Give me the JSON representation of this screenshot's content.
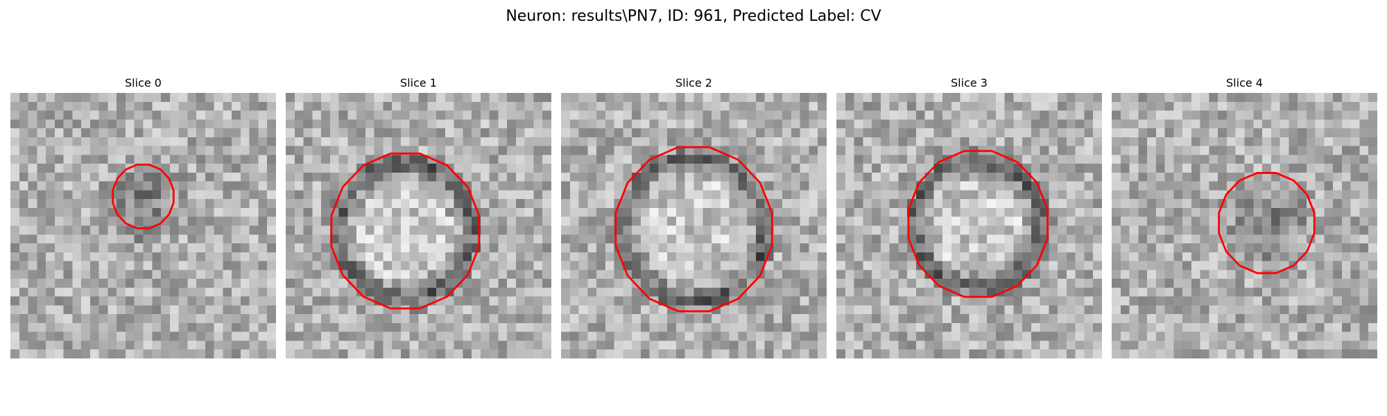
{
  "figure": {
    "suptitle": "Neuron: results\\PN7, ID: 961, Predicted Label: CV",
    "contour_color": "#ff0000",
    "colormap": "gray",
    "grid_size": 30
  },
  "panels": [
    {
      "title": "Slice 0",
      "contour": {
        "cx": 15,
        "cy": 11.7,
        "r": 3.5
      },
      "blob": {
        "cx": 15,
        "cy": 12.5,
        "r": 6,
        "ring": false
      }
    },
    {
      "title": "Slice 1",
      "contour": {
        "cx": 13.5,
        "cy": 15.6,
        "r": 8.5
      },
      "blob": {
        "cx": 13.5,
        "cy": 15.6,
        "r": 9,
        "ring": true
      }
    },
    {
      "title": "Slice 2",
      "contour": {
        "cx": 15,
        "cy": 15.4,
        "r": 9
      },
      "blob": {
        "cx": 15,
        "cy": 15.4,
        "r": 9.5,
        "ring": true
      }
    },
    {
      "title": "Slice 3",
      "contour": {
        "cx": 16,
        "cy": 14.8,
        "r": 8
      },
      "blob": {
        "cx": 16,
        "cy": 14.8,
        "r": 8.5,
        "ring": true
      }
    },
    {
      "title": "Slice 4",
      "contour": {
        "cx": 17.5,
        "cy": 14.7,
        "r": 5.5
      },
      "blob": {
        "cx": 17.5,
        "cy": 15,
        "r": 6,
        "ring": false
      }
    }
  ]
}
